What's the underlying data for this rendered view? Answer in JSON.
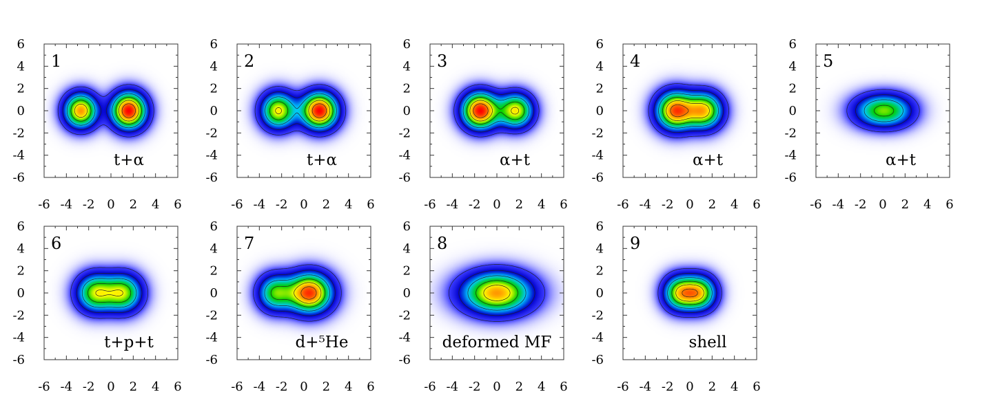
{
  "chart_data": [
    {
      "type": "heatmap",
      "panel": "1",
      "label": "t+α",
      "xlim": [
        -6,
        6
      ],
      "ylim": [
        -6,
        6
      ],
      "x_ticks": [
        "-6",
        "-4",
        "-2",
        "0",
        "2",
        "4",
        "6"
      ],
      "y_ticks": [
        "6",
        "4",
        "2",
        "0",
        "-2",
        "-4",
        "-6"
      ],
      "blobs": [
        {
          "x": -2.7,
          "y": 0,
          "sx": 1.0,
          "sy": 1.05,
          "a": 0.82
        },
        {
          "x": 1.6,
          "y": 0,
          "sx": 1.05,
          "sy": 1.1,
          "a": 1.0
        }
      ]
    },
    {
      "type": "heatmap",
      "panel": "2",
      "label": "t+α",
      "xlim": [
        -6,
        6
      ],
      "ylim": [
        -6,
        6
      ],
      "x_ticks": [
        "-6",
        "-4",
        "-2",
        "0",
        "2",
        "4",
        "6"
      ],
      "y_ticks": [
        "6",
        "4",
        "2",
        "0",
        "-2",
        "-4",
        "-6"
      ],
      "blobs": [
        {
          "x": -2.3,
          "y": 0,
          "sx": 1.05,
          "sy": 1.1,
          "a": 0.72
        },
        {
          "x": 1.4,
          "y": 0,
          "sx": 1.1,
          "sy": 1.1,
          "a": 1.0
        }
      ]
    },
    {
      "type": "heatmap",
      "panel": "3",
      "label": "α+t",
      "xlim": [
        -6,
        6
      ],
      "ylim": [
        -6,
        6
      ],
      "x_ticks": [
        "-6",
        "-4",
        "-2",
        "0",
        "2",
        "4",
        "6"
      ],
      "y_ticks": [
        "6",
        "4",
        "2",
        "0",
        "-2",
        "-4",
        "-6"
      ],
      "blobs": [
        {
          "x": -1.5,
          "y": 0,
          "sx": 1.1,
          "sy": 1.1,
          "a": 1.0
        },
        {
          "x": 1.7,
          "y": 0,
          "sx": 1.05,
          "sy": 1.05,
          "a": 0.72
        }
      ]
    },
    {
      "type": "heatmap",
      "panel": "4",
      "label": "α+t",
      "xlim": [
        -6,
        6
      ],
      "ylim": [
        -6,
        6
      ],
      "x_ticks": [
        "-6",
        "-4",
        "-2",
        "0",
        "2",
        "4",
        "6"
      ],
      "y_ticks": [
        "6",
        "4",
        "2",
        "0",
        "-2",
        "-4",
        "-6"
      ],
      "blobs": [
        {
          "x": -1.3,
          "y": 0,
          "sx": 1.15,
          "sy": 1.15,
          "a": 0.95
        },
        {
          "x": 1.3,
          "y": 0,
          "sx": 1.1,
          "sy": 1.1,
          "a": 0.78
        }
      ]
    },
    {
      "type": "heatmap",
      "panel": "5",
      "label": "α+t",
      "xlim": [
        -6,
        6
      ],
      "ylim": [
        -6,
        6
      ],
      "x_ticks": [
        "-6",
        "-4",
        "-2",
        "0",
        "2",
        "4",
        "6"
      ],
      "y_ticks": [
        "6",
        "4",
        "2",
        "0",
        "-2",
        "-4",
        "-6"
      ],
      "blobs": [
        {
          "x": -0.7,
          "y": 0,
          "sx": 1.5,
          "sy": 1.0,
          "a": 0.62
        },
        {
          "x": 1.0,
          "y": 0,
          "sx": 1.4,
          "sy": 1.0,
          "a": 0.52
        }
      ]
    },
    {
      "type": "heatmap",
      "panel": "6",
      "label": "t+p+t",
      "xlim": [
        -6,
        6
      ],
      "ylim": [
        -6,
        6
      ],
      "x_ticks": [
        "-6",
        "-4",
        "-2",
        "0",
        "2",
        "4",
        "6"
      ],
      "y_ticks": [
        "6",
        "4",
        "2",
        "0",
        "-2",
        "-4",
        "-6"
      ],
      "blobs": [
        {
          "x": -1.4,
          "y": 0,
          "sx": 1.15,
          "sy": 1.15,
          "a": 0.72
        },
        {
          "x": 1.1,
          "y": 0,
          "sx": 1.15,
          "sy": 1.15,
          "a": 0.72
        }
      ]
    },
    {
      "type": "heatmap",
      "panel": "7",
      "label": "d+⁵He",
      "xlim": [
        -6,
        6
      ],
      "ylim": [
        -6,
        6
      ],
      "x_ticks": [
        "-6",
        "-4",
        "-2",
        "0",
        "2",
        "4",
        "6"
      ],
      "y_ticks": [
        "6",
        "4",
        "2",
        "0",
        "-2",
        "-4",
        "-6"
      ],
      "blobs": [
        {
          "x": -2.6,
          "y": 0,
          "sx": 1.05,
          "sy": 1.1,
          "a": 0.55
        },
        {
          "x": 0.5,
          "y": 0,
          "sx": 1.35,
          "sy": 1.2,
          "a": 0.95
        }
      ]
    },
    {
      "type": "heatmap",
      "panel": "8",
      "label": "deformed MF",
      "xlim": [
        -6,
        6
      ],
      "ylim": [
        -6,
        6
      ],
      "x_ticks": [
        "-6",
        "-4",
        "-2",
        "0",
        "2",
        "4",
        "6"
      ],
      "y_ticks": [
        "6",
        "4",
        "2",
        "0",
        "-2",
        "-4",
        "-6"
      ],
      "blobs": [
        {
          "x": 0,
          "y": 0,
          "sx": 2.1,
          "sy": 1.25,
          "a": 0.82
        }
      ]
    },
    {
      "type": "heatmap",
      "panel": "9",
      "label": "shell",
      "xlim": [
        -6,
        6
      ],
      "ylim": [
        -6,
        6
      ],
      "x_ticks": [
        "-6",
        "-4",
        "-2",
        "0",
        "2",
        "4",
        "6"
      ],
      "y_ticks": [
        "6",
        "4",
        "2",
        "0",
        "-2",
        "-4",
        "-6"
      ],
      "blobs": [
        {
          "x": -0.9,
          "y": 0,
          "sx": 1.0,
          "sy": 1.05,
          "a": 0.9
        },
        {
          "x": 0.9,
          "y": 0,
          "sx": 1.0,
          "sy": 1.05,
          "a": 0.9
        }
      ]
    }
  ],
  "colors": {
    "colormap": [
      "#ffffff",
      "#3a3aff",
      "#0000cc",
      "#00c8ff",
      "#00d000",
      "#ffff00",
      "#ff8000",
      "#ff0000"
    ],
    "contour": "#222222",
    "frame": "#333333"
  }
}
